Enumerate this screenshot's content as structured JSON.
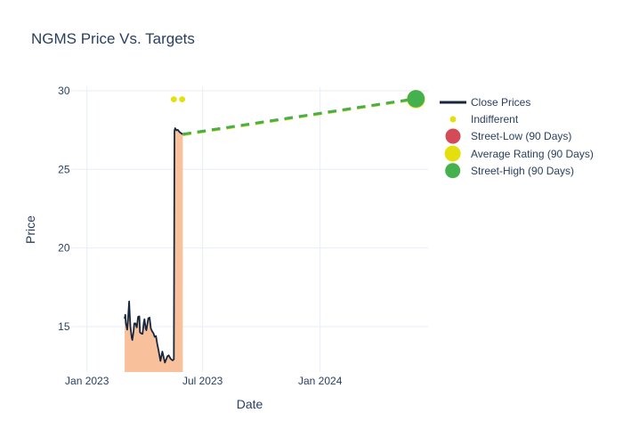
{
  "title": "NGMS Price Vs. Targets",
  "colors": {
    "text": "#2a3f5f",
    "grid": "#e8edf6",
    "background": "#ffffff",
    "close_line": "#17263f",
    "close_fill": "#f9c09c",
    "street_low": "#d24b56",
    "average_rating": "#e3e00d",
    "street_high": "#44b14e",
    "indifferent": "#e3e00d"
  },
  "chart_data": {
    "type": "line",
    "title": "NGMS Price Vs. Targets",
    "xlabel": "Date",
    "ylabel": "Price",
    "grid": true,
    "legend_position": "right",
    "x_range": [
      "2022-12-08",
      "2024-06-18"
    ],
    "y_range": [
      12.11,
      30.24
    ],
    "x_ticks": [
      {
        "date": "2023-01-01",
        "label": "Jan 2023"
      },
      {
        "date": "2023-07-01",
        "label": "Jul 2023"
      },
      {
        "date": "2024-01-01",
        "label": "Jan 2024"
      }
    ],
    "y_ticks": [
      {
        "value": 15,
        "label": "15"
      },
      {
        "value": 20,
        "label": "20"
      },
      {
        "value": 25,
        "label": "25"
      },
      {
        "value": 30,
        "label": "30"
      }
    ],
    "series": [
      {
        "name": "Close Prices",
        "type": "area-line",
        "color": "#17263f",
        "fill_color": "#f9c09c",
        "line_width": 1.8,
        "points": [
          {
            "date": "2023-03-01",
            "price": 15.5
          },
          {
            "date": "2023-03-02",
            "price": 15.75
          },
          {
            "date": "2023-03-03",
            "price": 15.2
          },
          {
            "date": "2023-03-05",
            "price": 14.8
          },
          {
            "date": "2023-03-06",
            "price": 15.3
          },
          {
            "date": "2023-03-08",
            "price": 16.6
          },
          {
            "date": "2023-03-09",
            "price": 15.75
          },
          {
            "date": "2023-03-10",
            "price": 15.0
          },
          {
            "date": "2023-03-12",
            "price": 14.3
          },
          {
            "date": "2023-03-13",
            "price": 14.15
          },
          {
            "date": "2023-03-15",
            "price": 14.73
          },
          {
            "date": "2023-03-16",
            "price": 15.2
          },
          {
            "date": "2023-03-18",
            "price": 15.2
          },
          {
            "date": "2023-03-20",
            "price": 14.95
          },
          {
            "date": "2023-03-22",
            "price": 15.62
          },
          {
            "date": "2023-03-24",
            "price": 15.65
          },
          {
            "date": "2023-03-25",
            "price": 14.63
          },
          {
            "date": "2023-03-27",
            "price": 14.56
          },
          {
            "date": "2023-03-29",
            "price": 14.54
          },
          {
            "date": "2023-03-31",
            "price": 15.26
          },
          {
            "date": "2023-04-01",
            "price": 15.47
          },
          {
            "date": "2023-04-03",
            "price": 14.86
          },
          {
            "date": "2023-04-04",
            "price": 14.77
          },
          {
            "date": "2023-04-07",
            "price": 15.53
          },
          {
            "date": "2023-04-09",
            "price": 15.57
          },
          {
            "date": "2023-04-11",
            "price": 14.88
          },
          {
            "date": "2023-04-13",
            "price": 14.7
          },
          {
            "date": "2023-04-15",
            "price": 14.58
          },
          {
            "date": "2023-04-17",
            "price": 14.35
          },
          {
            "date": "2023-04-19",
            "price": 14.4
          },
          {
            "date": "2023-04-21",
            "price": 13.9
          },
          {
            "date": "2023-04-23",
            "price": 13.5
          },
          {
            "date": "2023-04-26",
            "price": 12.82
          },
          {
            "date": "2023-04-29",
            "price": 13.41
          },
          {
            "date": "2023-05-03",
            "price": 12.71
          },
          {
            "date": "2023-05-07",
            "price": 13.12
          },
          {
            "date": "2023-05-09",
            "price": 13.17
          },
          {
            "date": "2023-05-12",
            "price": 12.95
          },
          {
            "date": "2023-05-15",
            "price": 12.85
          },
          {
            "date": "2023-05-17",
            "price": 12.92
          },
          {
            "date": "2023-05-18",
            "price": 27.45
          },
          {
            "date": "2023-05-19",
            "price": 27.62
          },
          {
            "date": "2023-05-21",
            "price": 27.48
          },
          {
            "date": "2023-05-23",
            "price": 27.52
          },
          {
            "date": "2023-05-26",
            "price": 27.37
          },
          {
            "date": "2023-05-29",
            "price": 27.28
          },
          {
            "date": "2023-05-31",
            "price": 27.23
          }
        ]
      },
      {
        "name": "Indifferent",
        "type": "scatter",
        "color": "#e3e00d",
        "marker_radius": 3.4,
        "points": [
          {
            "date": "2023-05-17",
            "price": 29.45
          },
          {
            "date": "2023-05-30",
            "price": 29.45
          }
        ]
      },
      {
        "name": "Street-Low (90 Days)",
        "type": "target-line",
        "color": "#d24b56",
        "line_width": 3,
        "dash": "9.5 7",
        "marker_radius": 8.5,
        "points": [
          {
            "date": "2023-05-31",
            "price": 27.23
          },
          {
            "date": "2024-05-30",
            "price": 29.49
          }
        ]
      },
      {
        "name": "Average Rating (90 Days)",
        "type": "target-line",
        "color": "#e3e00d",
        "line_width": 3,
        "dash": "9.5 7",
        "marker_radius": 10.2,
        "points": [
          {
            "date": "2023-05-31",
            "price": 27.19
          },
          {
            "date": "2024-05-30",
            "price": 29.46
          }
        ]
      },
      {
        "name": "Street-High (90 Days)",
        "type": "target-line",
        "color": "#44b14e",
        "line_width": 3,
        "dash": "9.5 7",
        "marker_radius": 9.8,
        "points": [
          {
            "date": "2023-05-31",
            "price": 27.23
          },
          {
            "date": "2024-05-30",
            "price": 29.49
          }
        ]
      }
    ]
  },
  "legend": {
    "items": [
      {
        "label": "Close Prices",
        "swatch": "line",
        "color": "#17263f"
      },
      {
        "label": "Indifferent",
        "swatch": "dot",
        "color": "#e3e00d",
        "radius": 3.5
      },
      {
        "label": "Street-Low (90 Days)",
        "swatch": "dot",
        "color": "#d24b56",
        "radius": 8.5
      },
      {
        "label": "Average Rating (90 Days)",
        "swatch": "dot",
        "color": "#e3e00d",
        "radius": 9.4
      },
      {
        "label": "Street-High (90 Days)",
        "swatch": "dot",
        "color": "#44b14e",
        "radius": 8.8
      }
    ]
  }
}
